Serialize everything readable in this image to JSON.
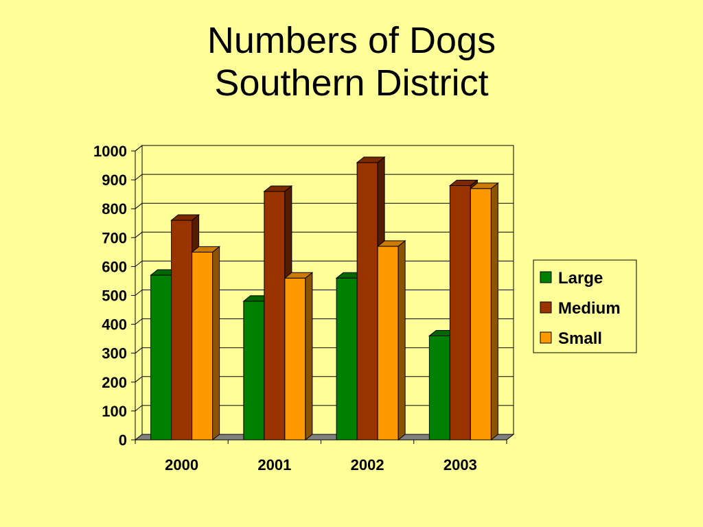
{
  "chart_data": {
    "type": "bar",
    "title_lines": [
      "Numbers of Dogs",
      "Southern District"
    ],
    "categories": [
      "2000",
      "2001",
      "2002",
      "2003"
    ],
    "series": [
      {
        "name": "Large",
        "values": [
          570,
          480,
          560,
          360
        ],
        "color": "#008000"
      },
      {
        "name": "Medium",
        "values": [
          760,
          860,
          960,
          880
        ],
        "color": "#993300"
      },
      {
        "name": "Small",
        "values": [
          650,
          560,
          670,
          870
        ],
        "color": "#ff9900"
      }
    ],
    "ylim": [
      0,
      1000
    ],
    "yticks": [
      0,
      100,
      200,
      300,
      400,
      500,
      600,
      700,
      800,
      900,
      1000
    ],
    "xlabel": "",
    "ylabel": "",
    "grid": true,
    "legend_position": "right"
  }
}
